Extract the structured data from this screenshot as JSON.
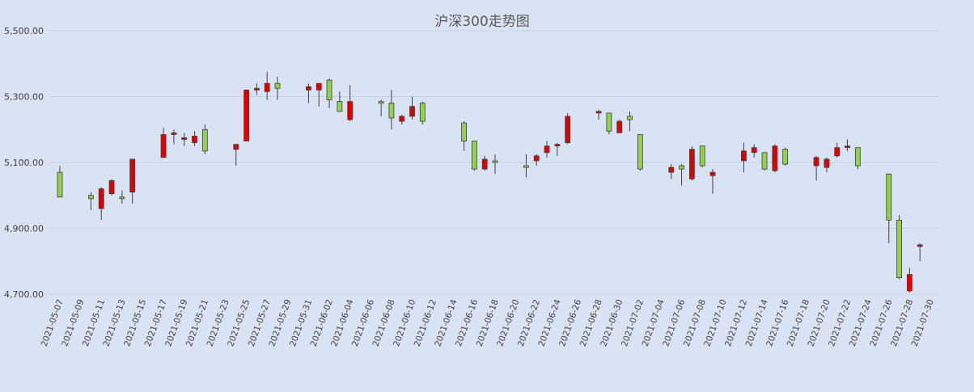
{
  "chart_data": {
    "type": "candlestick",
    "title": "沪深300走势图",
    "ylim": [
      4700,
      5500
    ],
    "y_ticks": [
      "4,700.00",
      "4,900.00",
      "5,100.00",
      "5,300.00",
      "5,500.00"
    ],
    "y_tick_values": [
      4700,
      4900,
      5100,
      5300,
      5500
    ],
    "x_start": "2021-05-07",
    "x_end": "2021-07-30",
    "x_tick_labels": [
      "2021-05-07",
      "2021-05-09",
      "2021-05-11",
      "2021-05-13",
      "2021-05-15",
      "2021-05-17",
      "2021-05-19",
      "2021-05-21",
      "2021-05-23",
      "2021-05-25",
      "2021-05-27",
      "2021-05-29",
      "2021-05-31",
      "2021-06-02",
      "2021-06-04",
      "2021-06-06",
      "2021-06-08",
      "2021-06-10",
      "2021-06-12",
      "2021-06-14",
      "2021-06-16",
      "2021-06-18",
      "2021-06-20",
      "2021-06-22",
      "2021-06-24",
      "2021-06-26",
      "2021-06-28",
      "2021-06-30",
      "2021-07-02",
      "2021-07-04",
      "2021-07-06",
      "2021-07-08",
      "2021-07-10",
      "2021-07-12",
      "2021-07-14",
      "2021-07-16",
      "2021-07-18",
      "2021-07-20",
      "2021-07-22",
      "2021-07-24",
      "2021-07-26",
      "2021-07-28",
      "2021-07-30"
    ],
    "grid": true,
    "legend": "none",
    "colors": {
      "up": "#e00000",
      "down": "#92d050",
      "outline": "#404040",
      "background": "#dae3f3"
    },
    "candles": [
      {
        "date": "2021-05-07",
        "open": 5070,
        "high": 5090,
        "low": 4995,
        "close": 4995
      },
      {
        "date": "2021-05-10",
        "open": 5000,
        "high": 5010,
        "low": 4955,
        "close": 4990
      },
      {
        "date": "2021-05-11",
        "open": 4960,
        "high": 5025,
        "low": 4925,
        "close": 5020
      },
      {
        "date": "2021-05-12",
        "open": 5005,
        "high": 5050,
        "low": 5000,
        "close": 5045
      },
      {
        "date": "2021-05-13",
        "open": 4995,
        "high": 5015,
        "low": 4975,
        "close": 4990
      },
      {
        "date": "2021-05-14",
        "open": 5010,
        "high": 5110,
        "low": 4975,
        "close": 5110
      },
      {
        "date": "2021-05-17",
        "open": 5115,
        "high": 5205,
        "low": 5115,
        "close": 5185
      },
      {
        "date": "2021-05-18",
        "open": 5185,
        "high": 5200,
        "low": 5155,
        "close": 5190
      },
      {
        "date": "2021-05-19",
        "open": 5170,
        "high": 5190,
        "low": 5150,
        "close": 5175
      },
      {
        "date": "2021-05-20",
        "open": 5160,
        "high": 5195,
        "low": 5150,
        "close": 5180
      },
      {
        "date": "2021-05-21",
        "open": 5200,
        "high": 5215,
        "low": 5125,
        "close": 5135
      },
      {
        "date": "2021-05-24",
        "open": 5140,
        "high": 5155,
        "low": 5090,
        "close": 5155
      },
      {
        "date": "2021-05-25",
        "open": 5165,
        "high": 5320,
        "low": 5165,
        "close": 5320
      },
      {
        "date": "2021-05-26",
        "open": 5320,
        "high": 5340,
        "low": 5305,
        "close": 5325
      },
      {
        "date": "2021-05-27",
        "open": 5315,
        "high": 5375,
        "low": 5290,
        "close": 5340
      },
      {
        "date": "2021-05-28",
        "open": 5340,
        "high": 5360,
        "low": 5290,
        "close": 5325
      },
      {
        "date": "2021-05-31",
        "open": 5320,
        "high": 5340,
        "low": 5280,
        "close": 5330
      },
      {
        "date": "2021-06-01",
        "open": 5320,
        "high": 5340,
        "low": 5270,
        "close": 5340
      },
      {
        "date": "2021-06-02",
        "open": 5350,
        "high": 5355,
        "low": 5265,
        "close": 5290
      },
      {
        "date": "2021-06-03",
        "open": 5285,
        "high": 5315,
        "low": 5255,
        "close": 5255
      },
      {
        "date": "2021-06-04",
        "open": 5230,
        "high": 5335,
        "low": 5225,
        "close": 5285
      },
      {
        "date": "2021-06-07",
        "open": 5285,
        "high": 5290,
        "low": 5240,
        "close": 5280
      },
      {
        "date": "2021-06-08",
        "open": 5280,
        "high": 5320,
        "low": 5200,
        "close": 5235
      },
      {
        "date": "2021-06-09",
        "open": 5225,
        "high": 5245,
        "low": 5215,
        "close": 5240
      },
      {
        "date": "2021-06-10",
        "open": 5240,
        "high": 5300,
        "low": 5230,
        "close": 5270
      },
      {
        "date": "2021-06-11",
        "open": 5280,
        "high": 5285,
        "low": 5215,
        "close": 5225
      },
      {
        "date": "2021-06-15",
        "open": 5220,
        "high": 5225,
        "low": 5135,
        "close": 5165
      },
      {
        "date": "2021-06-16",
        "open": 5165,
        "high": 5165,
        "low": 5075,
        "close": 5080
      },
      {
        "date": "2021-06-17",
        "open": 5080,
        "high": 5120,
        "low": 5075,
        "close": 5110
      },
      {
        "date": "2021-06-18",
        "open": 5105,
        "high": 5125,
        "low": 5065,
        "close": 5100
      },
      {
        "date": "2021-06-21",
        "open": 5090,
        "high": 5125,
        "low": 5055,
        "close": 5085
      },
      {
        "date": "2021-06-22",
        "open": 5105,
        "high": 5125,
        "low": 5090,
        "close": 5120
      },
      {
        "date": "2021-06-23",
        "open": 5130,
        "high": 5165,
        "low": 5115,
        "close": 5150
      },
      {
        "date": "2021-06-24",
        "open": 5150,
        "high": 5160,
        "low": 5120,
        "close": 5155
      },
      {
        "date": "2021-06-25",
        "open": 5160,
        "high": 5250,
        "low": 5155,
        "close": 5240
      },
      {
        "date": "2021-06-28",
        "open": 5250,
        "high": 5260,
        "low": 5230,
        "close": 5255
      },
      {
        "date": "2021-06-29",
        "open": 5250,
        "high": 5250,
        "low": 5185,
        "close": 5195
      },
      {
        "date": "2021-06-30",
        "open": 5190,
        "high": 5230,
        "low": 5190,
        "close": 5225
      },
      {
        "date": "2021-07-01",
        "open": 5240,
        "high": 5255,
        "low": 5195,
        "close": 5230
      },
      {
        "date": "2021-07-02",
        "open": 5185,
        "high": 5185,
        "low": 5075,
        "close": 5080
      },
      {
        "date": "2021-07-05",
        "open": 5070,
        "high": 5095,
        "low": 5050,
        "close": 5085
      },
      {
        "date": "2021-07-06",
        "open": 5090,
        "high": 5095,
        "low": 5030,
        "close": 5080
      },
      {
        "date": "2021-07-07",
        "open": 5050,
        "high": 5150,
        "low": 5045,
        "close": 5140
      },
      {
        "date": "2021-07-08",
        "open": 5150,
        "high": 5150,
        "low": 5085,
        "close": 5090
      },
      {
        "date": "2021-07-09",
        "open": 5060,
        "high": 5080,
        "low": 5005,
        "close": 5070
      },
      {
        "date": "2021-07-12",
        "open": 5105,
        "high": 5160,
        "low": 5070,
        "close": 5135
      },
      {
        "date": "2021-07-13",
        "open": 5130,
        "high": 5155,
        "low": 5115,
        "close": 5145
      },
      {
        "date": "2021-07-14",
        "open": 5130,
        "high": 5130,
        "low": 5075,
        "close": 5080
      },
      {
        "date": "2021-07-15",
        "open": 5075,
        "high": 5155,
        "low": 5070,
        "close": 5150
      },
      {
        "date": "2021-07-16",
        "open": 5140,
        "high": 5145,
        "low": 5090,
        "close": 5095
      },
      {
        "date": "2021-07-19",
        "open": 5090,
        "high": 5120,
        "low": 5045,
        "close": 5115
      },
      {
        "date": "2021-07-20",
        "open": 5085,
        "high": 5115,
        "low": 5070,
        "close": 5110
      },
      {
        "date": "2021-07-21",
        "open": 5120,
        "high": 5160,
        "low": 5115,
        "close": 5145
      },
      {
        "date": "2021-07-22",
        "open": 5145,
        "high": 5170,
        "low": 5135,
        "close": 5150
      },
      {
        "date": "2021-07-23",
        "open": 5145,
        "high": 5145,
        "low": 5080,
        "close": 5090
      },
      {
        "date": "2021-07-26",
        "open": 5065,
        "high": 5065,
        "low": 4855,
        "close": 4925
      },
      {
        "date": "2021-07-27",
        "open": 4925,
        "high": 4940,
        "low": 4745,
        "close": 4750
      },
      {
        "date": "2021-07-28",
        "open": 4710,
        "high": 4780,
        "low": 4705,
        "close": 4760
      },
      {
        "date": "2021-07-29",
        "open": 4845,
        "high": 4855,
        "low": 4800,
        "close": 4850
      }
    ]
  }
}
